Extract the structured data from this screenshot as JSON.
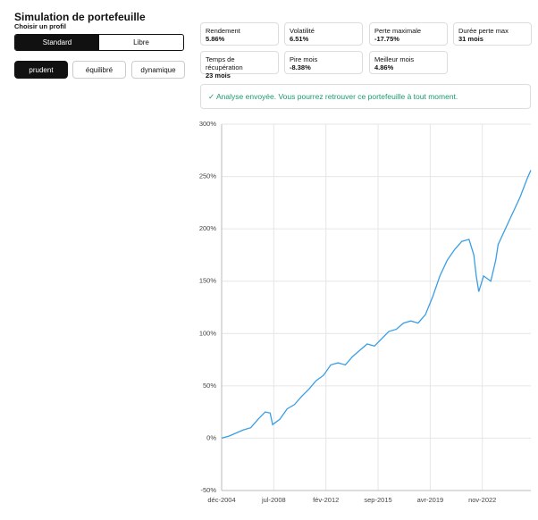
{
  "header": {
    "title": "Simulation de portefeuille",
    "subtitle": "Choisir un profil"
  },
  "modes": [
    "Standard",
    "Libre"
  ],
  "profiles": [
    "prudent",
    "équilibré",
    "dynamique"
  ],
  "metrics": [
    {
      "label": "Rendement",
      "value": "5.86%"
    },
    {
      "label": "Volatilité",
      "value": "6.51%"
    },
    {
      "label": "Perte maximale",
      "value": "-17.75%"
    },
    {
      "label": "Durée perte max",
      "value": "31 mois"
    },
    {
      "label": "Temps de récupération",
      "value": "23 mois"
    },
    {
      "label": "Pire mois",
      "value": "-8.38%"
    },
    {
      "label": "Meilleur mois",
      "value": "4.86%"
    }
  ],
  "message": "✓ Analyse envoyée. Vous pourrez retrouver ce portefeuille à tout moment.",
  "chart_data": {
    "type": "line",
    "color": "#3a9ee4",
    "grid": true,
    "x": [
      0,
      6,
      12,
      18,
      24,
      30,
      36,
      40,
      42,
      48,
      54,
      60,
      66,
      72,
      78,
      84,
      90,
      96,
      102,
      108,
      114,
      120,
      126,
      132,
      138,
      144,
      150,
      156,
      162,
      168,
      174,
      180,
      186,
      192,
      198,
      204,
      208,
      210,
      212,
      216,
      222,
      226,
      228,
      234,
      240,
      246,
      252,
      255
    ],
    "values": [
      0,
      2,
      5,
      8,
      10,
      18,
      25,
      24,
      13,
      18,
      28,
      32,
      40,
      47,
      55,
      60,
      70,
      72,
      70,
      78,
      84,
      90,
      88,
      95,
      102,
      104,
      110,
      112,
      110,
      118,
      135,
      155,
      170,
      180,
      188,
      190,
      175,
      155,
      140,
      155,
      150,
      170,
      185,
      200,
      215,
      230,
      248,
      256
    ],
    "xlim": [
      0,
      255
    ],
    "xticks": [
      {
        "value": 0,
        "label": "déc-2004"
      },
      {
        "value": 43,
        "label": "jul-2008"
      },
      {
        "value": 86,
        "label": "fév-2012"
      },
      {
        "value": 129,
        "label": "sep-2015"
      },
      {
        "value": 172,
        "label": "avr-2019"
      },
      {
        "value": 215,
        "label": "nov-2022"
      }
    ],
    "ylim": [
      -50,
      300
    ],
    "yticks": [
      {
        "value": -50,
        "label": "-50%"
      },
      {
        "value": 0,
        "label": "0%"
      },
      {
        "value": 50,
        "label": "50%"
      },
      {
        "value": 100,
        "label": "100%"
      },
      {
        "value": 150,
        "label": "150%"
      },
      {
        "value": 200,
        "label": "200%"
      },
      {
        "value": 250,
        "label": "250%"
      },
      {
        "value": 300,
        "label": "300%"
      }
    ]
  }
}
